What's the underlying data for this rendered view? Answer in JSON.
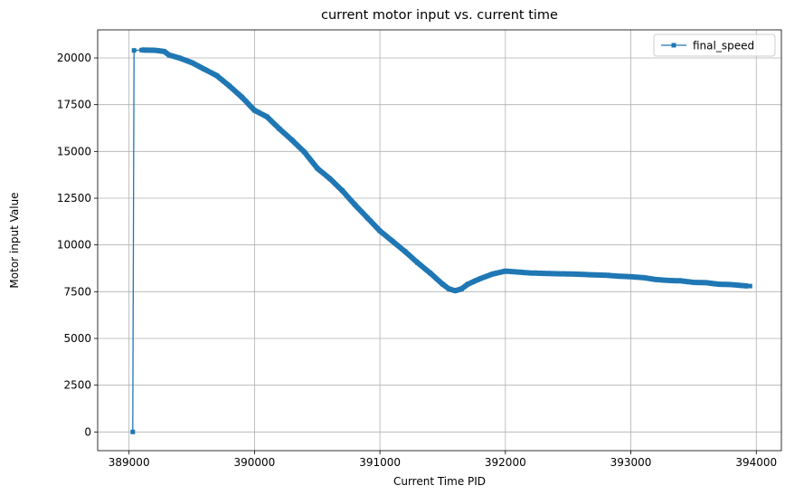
{
  "chart_data": {
    "type": "line",
    "title": "current motor input vs. current time",
    "xlabel": "Current Time PID",
    "ylabel": "Motor input Value",
    "xlim": [
      388750,
      394200
    ],
    "ylim": [
      -1000,
      21500
    ],
    "xticks": [
      389000,
      390000,
      391000,
      392000,
      393000,
      394000
    ],
    "xtick_labels": [
      "389000",
      "390000",
      "391000",
      "392000",
      "393000",
      "394000"
    ],
    "yticks": [
      0,
      2500,
      5000,
      7500,
      10000,
      12500,
      15000,
      17500,
      20000
    ],
    "ytick_labels": [
      "0",
      "2500",
      "5000",
      "7500",
      "10000",
      "12500",
      "15000",
      "17500",
      "20000"
    ],
    "grid": true,
    "legend_position": "top-right",
    "marker": "square",
    "series": [
      {
        "name": "final_speed",
        "color": "#1f77b4",
        "points": [
          [
            389030,
            0
          ],
          [
            389040,
            20400
          ],
          [
            389100,
            20420
          ],
          [
            389200,
            20410
          ],
          [
            389280,
            20350
          ],
          [
            389320,
            20150
          ],
          [
            389400,
            20000
          ],
          [
            389500,
            19750
          ],
          [
            389600,
            19400
          ],
          [
            389700,
            19050
          ],
          [
            389800,
            18500
          ],
          [
            389900,
            17900
          ],
          [
            390000,
            17200
          ],
          [
            390100,
            16850
          ],
          [
            390200,
            16200
          ],
          [
            390300,
            15600
          ],
          [
            390400,
            14950
          ],
          [
            390500,
            14100
          ],
          [
            390600,
            13550
          ],
          [
            390700,
            12900
          ],
          [
            390800,
            12150
          ],
          [
            390900,
            11450
          ],
          [
            391000,
            10750
          ],
          [
            391100,
            10200
          ],
          [
            391200,
            9650
          ],
          [
            391300,
            9050
          ],
          [
            391400,
            8500
          ],
          [
            391500,
            7900
          ],
          [
            391550,
            7650
          ],
          [
            391600,
            7550
          ],
          [
            391650,
            7650
          ],
          [
            391700,
            7900
          ],
          [
            391800,
            8200
          ],
          [
            391900,
            8450
          ],
          [
            392000,
            8600
          ],
          [
            392100,
            8550
          ],
          [
            392200,
            8500
          ],
          [
            392300,
            8480
          ],
          [
            392400,
            8460
          ],
          [
            392500,
            8450
          ],
          [
            392600,
            8430
          ],
          [
            392700,
            8400
          ],
          [
            392800,
            8380
          ],
          [
            392900,
            8330
          ],
          [
            393000,
            8300
          ],
          [
            393100,
            8250
          ],
          [
            393200,
            8150
          ],
          [
            393300,
            8100
          ],
          [
            393400,
            8080
          ],
          [
            393500,
            8000
          ],
          [
            393600,
            7980
          ],
          [
            393700,
            7900
          ],
          [
            393800,
            7880
          ],
          [
            393900,
            7820
          ],
          [
            393950,
            7800
          ]
        ]
      }
    ]
  }
}
